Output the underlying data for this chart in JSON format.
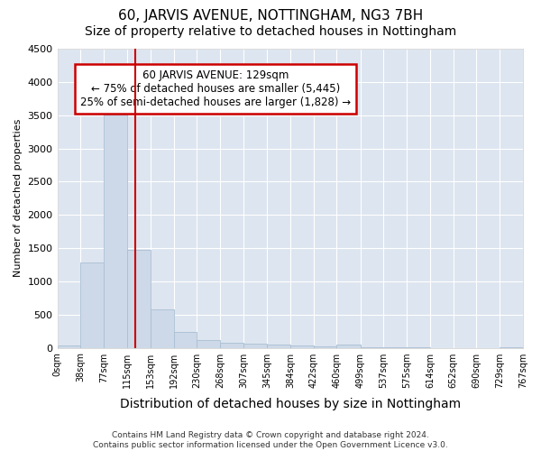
{
  "title": "60, JARVIS AVENUE, NOTTINGHAM, NG3 7BH",
  "subtitle": "Size of property relative to detached houses in Nottingham",
  "xlabel": "Distribution of detached houses by size in Nottingham",
  "ylabel": "Number of detached properties",
  "footer_line1": "Contains HM Land Registry data © Crown copyright and database right 2024.",
  "footer_line2": "Contains public sector information licensed under the Open Government Licence v3.0.",
  "bar_edges": [
    0,
    38,
    77,
    115,
    153,
    192,
    230,
    268,
    307,
    345,
    384,
    422,
    460,
    499,
    537,
    575,
    614,
    652,
    690,
    729,
    767
  ],
  "bar_heights": [
    35,
    1280,
    3510,
    1470,
    575,
    240,
    115,
    80,
    55,
    50,
    30,
    25,
    50,
    5,
    5,
    5,
    0,
    0,
    0,
    5
  ],
  "bar_color": "#cdd9e8",
  "bar_edge_color": "#aabfd4",
  "vline_x": 129,
  "vline_color": "#cc0000",
  "annotation_text": "60 JARVIS AVENUE: 129sqm\n← 75% of detached houses are smaller (5,445)\n25% of semi-detached houses are larger (1,828) →",
  "annotation_box_color": "#ffffff",
  "annotation_box_edge": "#cc0000",
  "ylim": [
    0,
    4500
  ],
  "yticks": [
    0,
    500,
    1000,
    1500,
    2000,
    2500,
    3000,
    3500,
    4000,
    4500
  ],
  "fig_bg_color": "#ffffff",
  "plot_bg_color": "#dde5f0",
  "title_fontsize": 11,
  "subtitle_fontsize": 10,
  "xlabel_fontsize": 10,
  "ylabel_fontsize": 8,
  "tick_labels": [
    "0sqm",
    "38sqm",
    "77sqm",
    "115sqm",
    "153sqm",
    "192sqm",
    "230sqm",
    "268sqm",
    "307sqm",
    "345sqm",
    "384sqm",
    "422sqm",
    "460sqm",
    "499sqm",
    "537sqm",
    "575sqm",
    "614sqm",
    "652sqm",
    "690sqm",
    "729sqm",
    "767sqm"
  ]
}
